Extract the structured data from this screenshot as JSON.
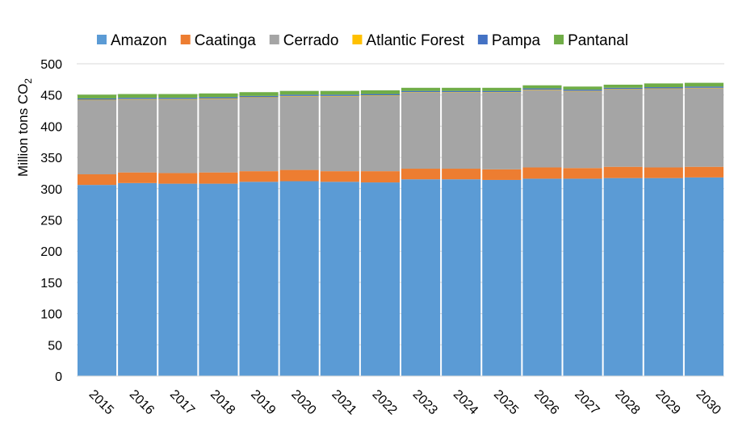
{
  "chart_data": {
    "type": "bar",
    "stacked": true,
    "categories": [
      "2015",
      "2016",
      "2017",
      "2018",
      "2019",
      "2020",
      "2021",
      "2022",
      "2023",
      "2024",
      "2025",
      "2026",
      "2027",
      "2028",
      "2029",
      "2030"
    ],
    "series": [
      {
        "name": "Amazon",
        "color": "#5B9BD5",
        "values": [
          306,
          309,
          308,
          308,
          311,
          312,
          311,
          310,
          315,
          315,
          314,
          316,
          316,
          317,
          317,
          318
        ]
      },
      {
        "name": "Caatinga",
        "color": "#ED7D31",
        "values": [
          17,
          17,
          17,
          18,
          17,
          18,
          17,
          18,
          17,
          17,
          17,
          18,
          17,
          18,
          17,
          17
        ]
      },
      {
        "name": "Cerrado",
        "color": "#A5A5A5",
        "values": [
          119,
          117,
          118,
          118,
          118,
          118,
          120,
          121,
          122,
          122,
          123,
          124,
          123,
          124,
          126,
          126
        ]
      },
      {
        "name": "Atlantic Forest",
        "color": "#FFC000",
        "values": [
          0.5,
          0.5,
          0.5,
          0.5,
          0.5,
          0.5,
          0.5,
          0.5,
          0.5,
          0.5,
          0.5,
          0.5,
          0.5,
          0.5,
          0.5,
          0.5
        ]
      },
      {
        "name": "Pampa",
        "color": "#4472C4",
        "values": [
          2,
          2,
          2,
          2,
          2,
          2,
          2,
          2,
          2,
          2,
          2,
          2,
          2,
          2,
          2,
          2
        ]
      },
      {
        "name": "Pantanal",
        "color": "#70AD47",
        "values": [
          6,
          6,
          6,
          6,
          6,
          6,
          6,
          6,
          5,
          5,
          5,
          5,
          5,
          5,
          6,
          6
        ]
      }
    ],
    "ylabel": "Million tons CO",
    "ylabel_subscript": "2",
    "ylim": [
      0,
      500
    ],
    "yticks": [
      0,
      50,
      100,
      150,
      200,
      250,
      300,
      350,
      400,
      450,
      500
    ],
    "grid": true,
    "legend_position": "top"
  }
}
